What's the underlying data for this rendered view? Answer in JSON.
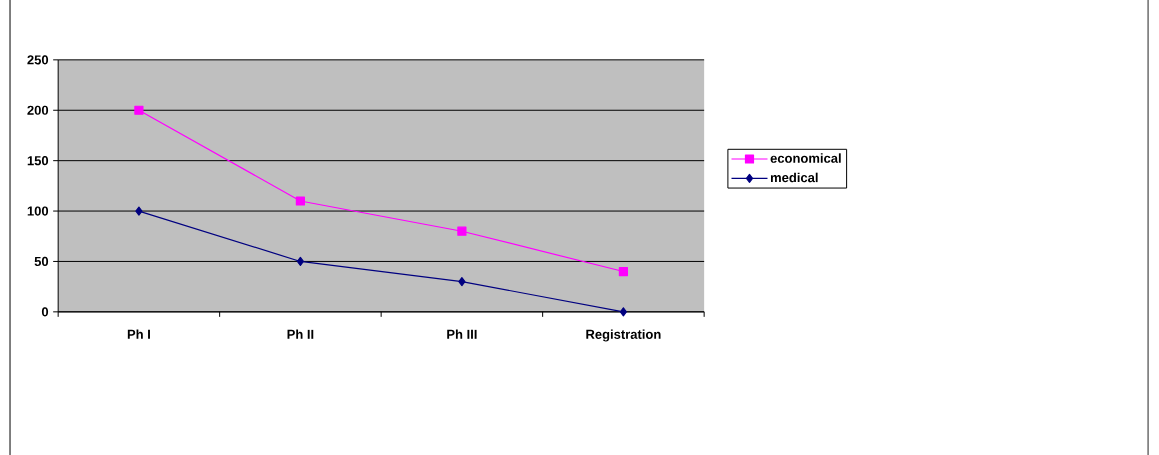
{
  "chart_data": {
    "type": "line",
    "categories": [
      "Ph I",
      "Ph II",
      "Ph III",
      "Registration"
    ],
    "series": [
      {
        "name": "economical",
        "color": "#ff00ff",
        "marker": "square",
        "values": [
          200,
          110,
          80,
          40
        ]
      },
      {
        "name": "medical",
        "color": "#000080",
        "marker": "diamond",
        "values": [
          100,
          50,
          30,
          0
        ]
      }
    ],
    "ylim": [
      0,
      250
    ],
    "yticks": [
      0,
      50,
      100,
      150,
      200,
      250
    ],
    "grid": "y",
    "legend": "right",
    "line_style": "solid"
  }
}
